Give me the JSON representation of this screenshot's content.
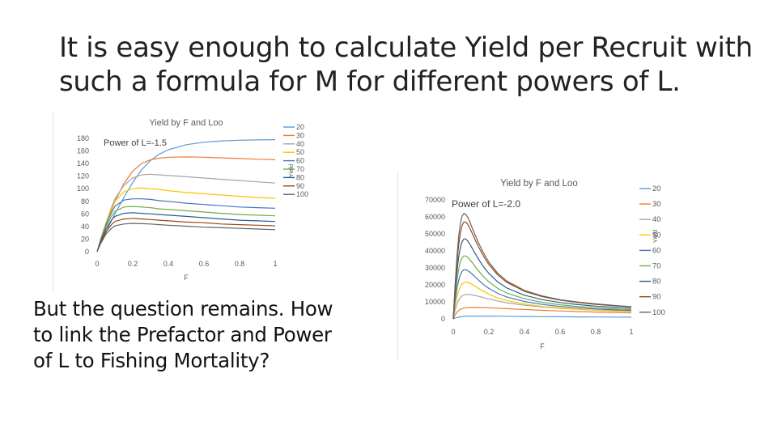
{
  "title": {
    "line1": "It is easy enough to calculate Yield per Recruit with",
    "line2": "such a formula for M for different powers of L."
  },
  "question": {
    "line1": "But the question remains.  How",
    "line2": "to link the Prefactor and Power",
    "line3": "of L to Fishing Mortality?"
  },
  "chart_data": [
    {
      "type": "line",
      "title": "Yield by F and Loo",
      "annotation": "Power of L=-1.5",
      "xlabel": "F",
      "ylabel": "Yield",
      "xlim": [
        0,
        1
      ],
      "ylim": [
        0,
        180
      ],
      "xticks": [
        "0",
        "0.2",
        "0.4",
        "0.6",
        "0.8",
        "1"
      ],
      "yticks": [
        "0",
        "20",
        "40",
        "60",
        "80",
        "100",
        "120",
        "140",
        "160",
        "180"
      ],
      "legend": "right",
      "x": [
        0,
        0.02,
        0.05,
        0.08,
        0.1,
        0.15,
        0.2,
        0.25,
        0.3,
        0.35,
        0.4,
        0.5,
        0.6,
        0.7,
        0.8,
        0.9,
        1.0
      ],
      "series": [
        {
          "name": "20",
          "color": "#5b9bd5",
          "values": [
            0,
            13,
            31,
            49,
            60,
            86,
            110,
            130,
            145,
            155,
            162,
            170,
            174,
            176,
            177,
            177.5,
            178
          ]
        },
        {
          "name": "30",
          "color": "#ed7d31",
          "values": [
            0,
            18,
            42,
            65,
            80,
            108,
            128,
            140,
            146,
            148.5,
            150,
            150.5,
            150,
            149,
            148,
            147,
            146
          ]
        },
        {
          "name": "40",
          "color": "#a5a5a5",
          "values": [
            0,
            20,
            46,
            70,
            84,
            105,
            117,
            122,
            123,
            122,
            121,
            119,
            117,
            115,
            113,
            111,
            109
          ]
        },
        {
          "name": "50",
          "color": "#ffc000",
          "values": [
            0,
            20,
            46,
            68,
            80,
            95,
            100,
            101,
            100,
            99,
            97,
            94,
            92,
            90,
            88,
            86,
            85
          ]
        },
        {
          "name": "60",
          "color": "#4472c4",
          "values": [
            0,
            19,
            43,
            62,
            72,
            82,
            84,
            84,
            83,
            81,
            80,
            77,
            75,
            73,
            71,
            70,
            69
          ]
        },
        {
          "name": "70",
          "color": "#70ad47",
          "values": [
            0,
            18,
            40,
            56,
            64,
            71,
            72,
            71,
            70,
            68,
            67,
            65,
            63,
            61,
            59,
            58,
            57
          ]
        },
        {
          "name": "80",
          "color": "#255e91",
          "values": [
            0,
            17,
            36,
            50,
            56,
            61,
            62,
            61,
            60,
            59,
            58,
            56,
            54,
            52,
            50,
            49,
            48
          ]
        },
        {
          "name": "90",
          "color": "#9e480e",
          "values": [
            0,
            15,
            32,
            43,
            48,
            52,
            53,
            52,
            51,
            50,
            49,
            47,
            46,
            44,
            43,
            42,
            41
          ]
        },
        {
          "name": "100",
          "color": "#636363",
          "values": [
            0,
            13,
            28,
            37,
            41,
            44,
            45,
            44.5,
            44,
            43,
            42,
            40.5,
            39,
            38,
            37,
            36,
            35
          ]
        }
      ]
    },
    {
      "type": "line",
      "title": "Yield by F and Loo",
      "annotation": "Power of L=-2.0",
      "xlabel": "F",
      "ylabel": "Yield",
      "xlim": [
        0,
        1
      ],
      "ylim": [
        0,
        70000
      ],
      "xticks": [
        "0",
        "0.2",
        "0.4",
        "0.6",
        "0.8",
        "1"
      ],
      "yticks": [
        "0",
        "10000",
        "20000",
        "30000",
        "40000",
        "50000",
        "60000",
        "70000"
      ],
      "legend": "right",
      "x": [
        0,
        0.01,
        0.02,
        0.03,
        0.04,
        0.05,
        0.06,
        0.07,
        0.08,
        0.09,
        0.1,
        0.12,
        0.14,
        0.16,
        0.18,
        0.2,
        0.25,
        0.3,
        0.4,
        0.5,
        0.6,
        0.7,
        0.8,
        0.9,
        1.0
      ],
      "series": [
        {
          "name": "20",
          "color": "#5b9bd5",
          "values": [
            0,
            400,
            750,
            1000,
            1200,
            1350,
            1450,
            1500,
            1550,
            1580,
            1600,
            1620,
            1630,
            1630,
            1620,
            1600,
            1550,
            1500,
            1400,
            1300,
            1220,
            1150,
            1100,
            1050,
            1000
          ]
        },
        {
          "name": "30",
          "color": "#ed7d31",
          "values": [
            0,
            2200,
            3800,
            4900,
            5600,
            6000,
            6300,
            6500,
            6600,
            6650,
            6680,
            6700,
            6690,
            6650,
            6600,
            6500,
            6300,
            6000,
            5500,
            5000,
            4600,
            4300,
            4000,
            3750,
            3500
          ]
        },
        {
          "name": "40",
          "color": "#a5a5a5",
          "values": [
            0,
            5000,
            8500,
            11000,
            12500,
            13500,
            14000,
            14300,
            14400,
            14350,
            14200,
            13800,
            13300,
            12800,
            12200,
            11700,
            10500,
            9500,
            8000,
            7000,
            6200,
            5600,
            5100,
            4700,
            4300
          ]
        },
        {
          "name": "50",
          "color": "#ffc000",
          "values": [
            0,
            7500,
            13000,
            16500,
            19000,
            20500,
            21300,
            21600,
            21500,
            21100,
            20600,
            19400,
            18000,
            16800,
            15600,
            14500,
            12300,
            10800,
            8700,
            7300,
            6400,
            5700,
            5100,
            4700,
            4400
          ]
        },
        {
          "name": "60",
          "color": "#4472c4",
          "values": [
            0,
            10000,
            17500,
            22500,
            26000,
            28000,
            28800,
            28900,
            28500,
            27800,
            26900,
            25000,
            23000,
            21100,
            19400,
            17900,
            15000,
            12900,
            10200,
            8500,
            7300,
            6500,
            5800,
            5300,
            4900
          ]
        },
        {
          "name": "70",
          "color": "#70ad47",
          "values": [
            0,
            12500,
            22000,
            29000,
            33500,
            36000,
            37000,
            37000,
            36300,
            35200,
            33900,
            31200,
            28500,
            26000,
            23800,
            21800,
            17900,
            15200,
            11800,
            9700,
            8300,
            7300,
            6500,
            5900,
            5400
          ]
        },
        {
          "name": "80",
          "color": "#255e91",
          "values": [
            0,
            15000,
            27000,
            36000,
            42000,
            45500,
            47000,
            47000,
            46000,
            44500,
            42700,
            39000,
            35500,
            32200,
            29300,
            26700,
            21700,
            18200,
            13900,
            11300,
            9600,
            8400,
            7500,
            6800,
            6200
          ]
        },
        {
          "name": "90",
          "color": "#9e480e",
          "values": [
            0,
            17500,
            32000,
            43000,
            50500,
            55000,
            57000,
            57000,
            55800,
            54000,
            51800,
            47200,
            42800,
            38800,
            35200,
            32000,
            25800,
            21500,
            16200,
            13100,
            11000,
            9600,
            8500,
            7700,
            7000
          ]
        },
        {
          "name": "100",
          "color": "#636363",
          "values": [
            0,
            19500,
            35500,
            48000,
            56000,
            60500,
            62000,
            61500,
            60000,
            57800,
            55200,
            50000,
            45200,
            40800,
            36900,
            33400,
            26800,
            22300,
            16700,
            13500,
            11300,
            9900,
            8800,
            7900,
            7200
          ]
        }
      ]
    }
  ]
}
